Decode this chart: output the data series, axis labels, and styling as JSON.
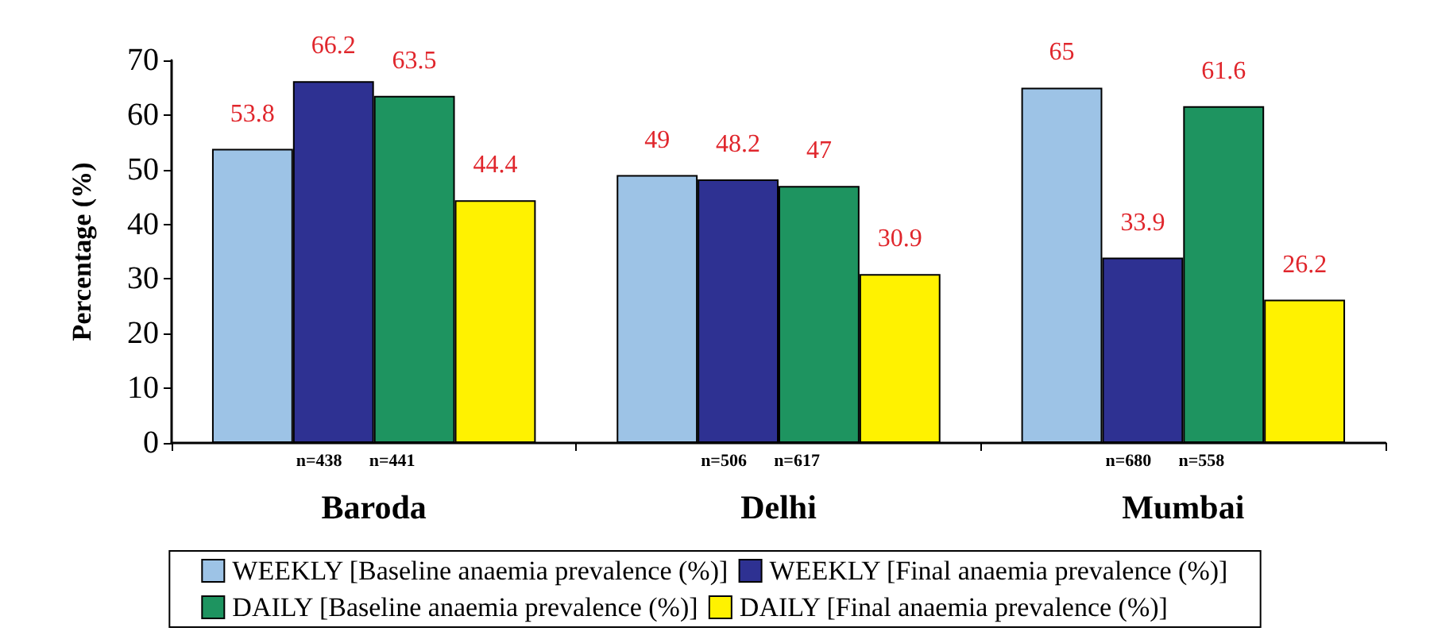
{
  "chart_data": {
    "type": "bar",
    "ylabel": "Percentage (%)",
    "categories": [
      "Baroda",
      "Delhi",
      "Mumbai"
    ],
    "series": [
      {
        "name": "WEEKLY [Baseline anaemia prevalence (%)]",
        "color": "#9dc3e6",
        "values": [
          53.8,
          49,
          65
        ]
      },
      {
        "name": "WEEKLY [Final anaemia prevalence (%)]",
        "color": "#2e3192",
        "values": [
          66.2,
          48.2,
          33.9
        ]
      },
      {
        "name": "DAILY [Baseline anaemia prevalence (%)]",
        "color": "#1e9460",
        "values": [
          63.5,
          47,
          61.6
        ]
      },
      {
        "name": "DAILY [Final anaemia prevalence (%)]",
        "color": "#fff200",
        "values": [
          44.4,
          30.9,
          26.2
        ]
      }
    ],
    "ylim": [
      0,
      70
    ],
    "yticks": [
      0,
      10,
      20,
      30,
      40,
      50,
      60,
      70
    ],
    "data_labels": true,
    "legend": "bottom",
    "grid": false,
    "annotations": [
      "n=438",
      "n=441",
      "n=506",
      "n=617",
      "n=680",
      "n=558"
    ]
  }
}
